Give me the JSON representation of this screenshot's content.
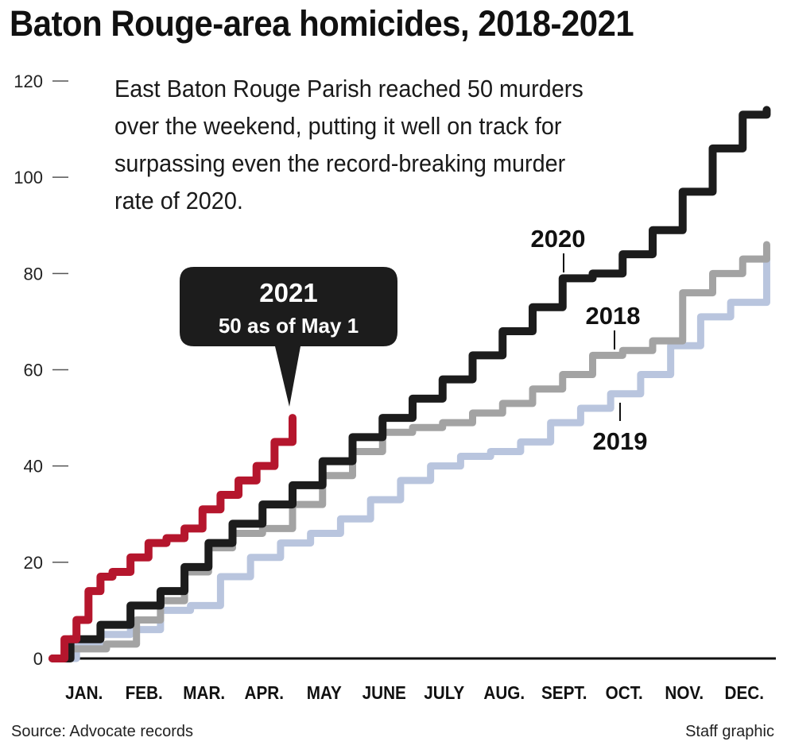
{
  "header": {
    "title": "Baton Rouge-area homicides, 2018-2021",
    "subtitle": "East Baton Rouge Parish reached 50 murders over the weekend, putting it well on track for surpassing even the record-breaking murder rate of 2020."
  },
  "footer": {
    "source": "Source: Advocate records",
    "credit": "Staff graphic"
  },
  "callout": {
    "year": "2021",
    "text": "50 as of May 1"
  },
  "chart_data": {
    "type": "line",
    "title": "Baton Rouge-area homicides, 2018-2021",
    "xlabel": "",
    "ylabel": "",
    "ylim": [
      0,
      120
    ],
    "xlim_months": [
      0,
      12
    ],
    "y_ticks": [
      0,
      20,
      40,
      60,
      80,
      100,
      120
    ],
    "x_ticks": [
      "JAN.",
      "FEB.",
      "MAR.",
      "APR.",
      "MAY",
      "JUNE",
      "JULY",
      "AUG.",
      "SEPT.",
      "OCT.",
      "NOV.",
      "DEC."
    ],
    "grid": false,
    "legend": "direct labels on lines",
    "x_unit": "months since Jan. 1",
    "series": [
      {
        "name": "2018",
        "color": "#a3a3a3",
        "x": [
          0,
          0.3,
          0.9,
          1.4,
          1.8,
          2.2,
          2.6,
          3.0,
          3.5,
          4.0,
          4.5,
          5.0,
          5.5,
          6.0,
          6.5,
          7.0,
          7.5,
          8.0,
          8.5,
          9.0,
          9.5,
          10.0,
          10.5,
          11.0,
          11.5,
          11.9
        ],
        "values": [
          0,
          2,
          3,
          8,
          12,
          18,
          23,
          26,
          27,
          32,
          38,
          43,
          47,
          48,
          49,
          51,
          53,
          56,
          59,
          63,
          64,
          66,
          76,
          80,
          83,
          86
        ]
      },
      {
        "name": "2019",
        "color": "#b9c5de",
        "x": [
          0,
          0.4,
          0.8,
          1.3,
          1.8,
          2.3,
          2.8,
          3.3,
          3.8,
          4.3,
          4.8,
          5.3,
          5.8,
          6.3,
          6.8,
          7.3,
          7.8,
          8.3,
          8.8,
          9.3,
          9.8,
          10.3,
          10.8,
          11.3,
          11.9
        ],
        "values": [
          0,
          3,
          5,
          6,
          10,
          11,
          17,
          21,
          24,
          26,
          29,
          33,
          37,
          40,
          42,
          43,
          45,
          49,
          52,
          55,
          59,
          65,
          71,
          74,
          83
        ]
      },
      {
        "name": "2020",
        "color": "#1c1c1c",
        "x": [
          0,
          0.3,
          0.8,
          1.3,
          1.8,
          2.2,
          2.6,
          3.0,
          3.5,
          4.0,
          4.5,
          5.0,
          5.5,
          6.0,
          6.5,
          7.0,
          7.5,
          8.0,
          8.5,
          9.0,
          9.5,
          10.0,
          10.5,
          11.0,
          11.5,
          11.9
        ],
        "values": [
          0,
          4,
          7,
          11,
          14,
          19,
          24,
          28,
          32,
          36,
          41,
          46,
          50,
          54,
          58,
          63,
          68,
          73,
          79,
          80,
          84,
          89,
          97,
          106,
          113,
          114
        ]
      },
      {
        "name": "2021",
        "color": "#b5162d",
        "x": [
          0,
          0.2,
          0.4,
          0.6,
          0.8,
          1.0,
          1.3,
          1.6,
          1.9,
          2.2,
          2.5,
          2.8,
          3.1,
          3.4,
          3.7,
          4.0
        ],
        "values": [
          0,
          4,
          8,
          14,
          17,
          18,
          21,
          24,
          25,
          27,
          31,
          34,
          37,
          40,
          45,
          50
        ]
      }
    ]
  }
}
